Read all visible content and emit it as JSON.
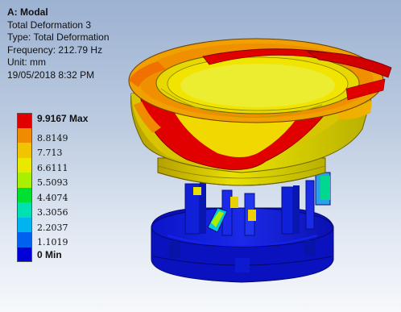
{
  "analysis": {
    "title": "A: Modal",
    "result_name": "Total Deformation 3",
    "type_line": "Type: Total Deformation",
    "frequency_line": "Frequency: 212.79 Hz",
    "unit_line": "Unit: mm",
    "timestamp": "19/05/2018 8:32 PM"
  },
  "legend": {
    "entries": [
      {
        "label": "9.9167 Max",
        "color": "#e00000"
      },
      {
        "label": "8.8149",
        "color": "#f08a00"
      },
      {
        "label": "7.713",
        "color": "#f0c400"
      },
      {
        "label": "6.6111",
        "color": "#e9e900"
      },
      {
        "label": "5.5093",
        "color": "#a8f000"
      },
      {
        "label": "4.4074",
        "color": "#00e030"
      },
      {
        "label": "3.3056",
        "color": "#00e0b0"
      },
      {
        "label": "2.2037",
        "color": "#00b4f0"
      },
      {
        "label": "1.1019",
        "color": "#0060f0"
      },
      {
        "label": "0 Min",
        "color": "#0000d8"
      }
    ]
  },
  "model": {
    "icon": "deformed-bowl-feeder-contour-plot"
  }
}
